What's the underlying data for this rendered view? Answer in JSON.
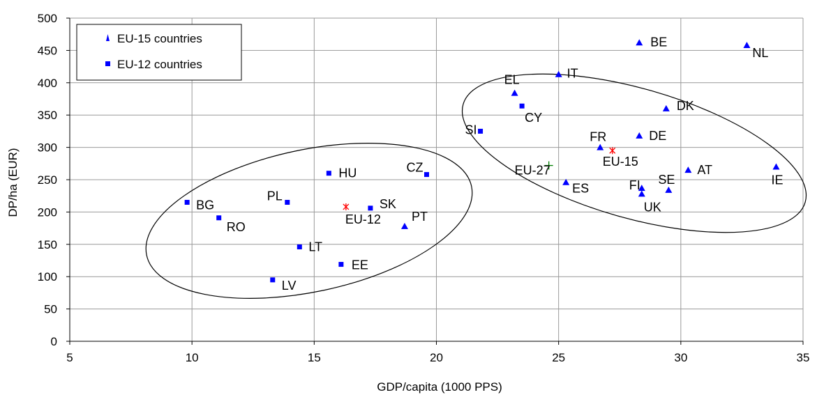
{
  "chart_data": {
    "type": "scatter",
    "title": "",
    "xlabel": "GDP/capita (1000 PPS)",
    "ylabel": "DP/ha (EUR)",
    "xlim": [
      5,
      35
    ],
    "ylim": [
      0,
      500
    ],
    "xticks": [
      5,
      10,
      15,
      20,
      25,
      30,
      35
    ],
    "yticks": [
      0,
      50,
      100,
      150,
      200,
      250,
      300,
      350,
      400,
      450,
      500
    ],
    "grid": true,
    "legend_position": "top-left",
    "colors": {
      "eu15": "#0000ff",
      "eu12": "#0000ff",
      "aggregate": "#ff0000",
      "eu27": "#008000"
    },
    "series": [
      {
        "name": "EU-15 countries",
        "marker": "triangle",
        "points": [
          {
            "label": "BE",
            "x": 28.3,
            "y": 462
          },
          {
            "label": "NL",
            "x": 32.7,
            "y": 458
          },
          {
            "label": "IT",
            "x": 25.0,
            "y": 413
          },
          {
            "label": "EL",
            "x": 23.2,
            "y": 384
          },
          {
            "label": "DK",
            "x": 29.4,
            "y": 360
          },
          {
            "label": "DE",
            "x": 28.3,
            "y": 318
          },
          {
            "label": "FR",
            "x": 26.7,
            "y": 300
          },
          {
            "label": "AT",
            "x": 30.3,
            "y": 265
          },
          {
            "label": "IE",
            "x": 33.9,
            "y": 270
          },
          {
            "label": "ES",
            "x": 25.3,
            "y": 246
          },
          {
            "label": "FI",
            "x": 28.4,
            "y": 237
          },
          {
            "label": "UK",
            "x": 28.4,
            "y": 228
          },
          {
            "label": "SE",
            "x": 29.5,
            "y": 234
          },
          {
            "label": "PT",
            "x": 18.7,
            "y": 178
          }
        ]
      },
      {
        "name": "EU-12 countries",
        "marker": "square",
        "points": [
          {
            "label": "CY",
            "x": 23.5,
            "y": 364
          },
          {
            "label": "SI",
            "x": 21.8,
            "y": 325
          },
          {
            "label": "HU",
            "x": 15.6,
            "y": 260
          },
          {
            "label": "CZ",
            "x": 19.6,
            "y": 258
          },
          {
            "label": "BG",
            "x": 9.8,
            "y": 215
          },
          {
            "label": "PL",
            "x": 13.9,
            "y": 215
          },
          {
            "label": "SK",
            "x": 17.3,
            "y": 206
          },
          {
            "label": "RO",
            "x": 11.1,
            "y": 191
          },
          {
            "label": "LT",
            "x": 14.4,
            "y": 146
          },
          {
            "label": "EE",
            "x": 16.1,
            "y": 119
          },
          {
            "label": "LV",
            "x": 13.3,
            "y": 95
          }
        ]
      }
    ],
    "aggregates": [
      {
        "label": "EU-12",
        "x": 16.3,
        "y": 208,
        "marker": "asterisk"
      },
      {
        "label": "EU-15",
        "x": 27.2,
        "y": 295,
        "marker": "asterisk"
      },
      {
        "label": "EU-27",
        "x": 24.6,
        "y": 272,
        "marker": "plus"
      }
    ]
  }
}
